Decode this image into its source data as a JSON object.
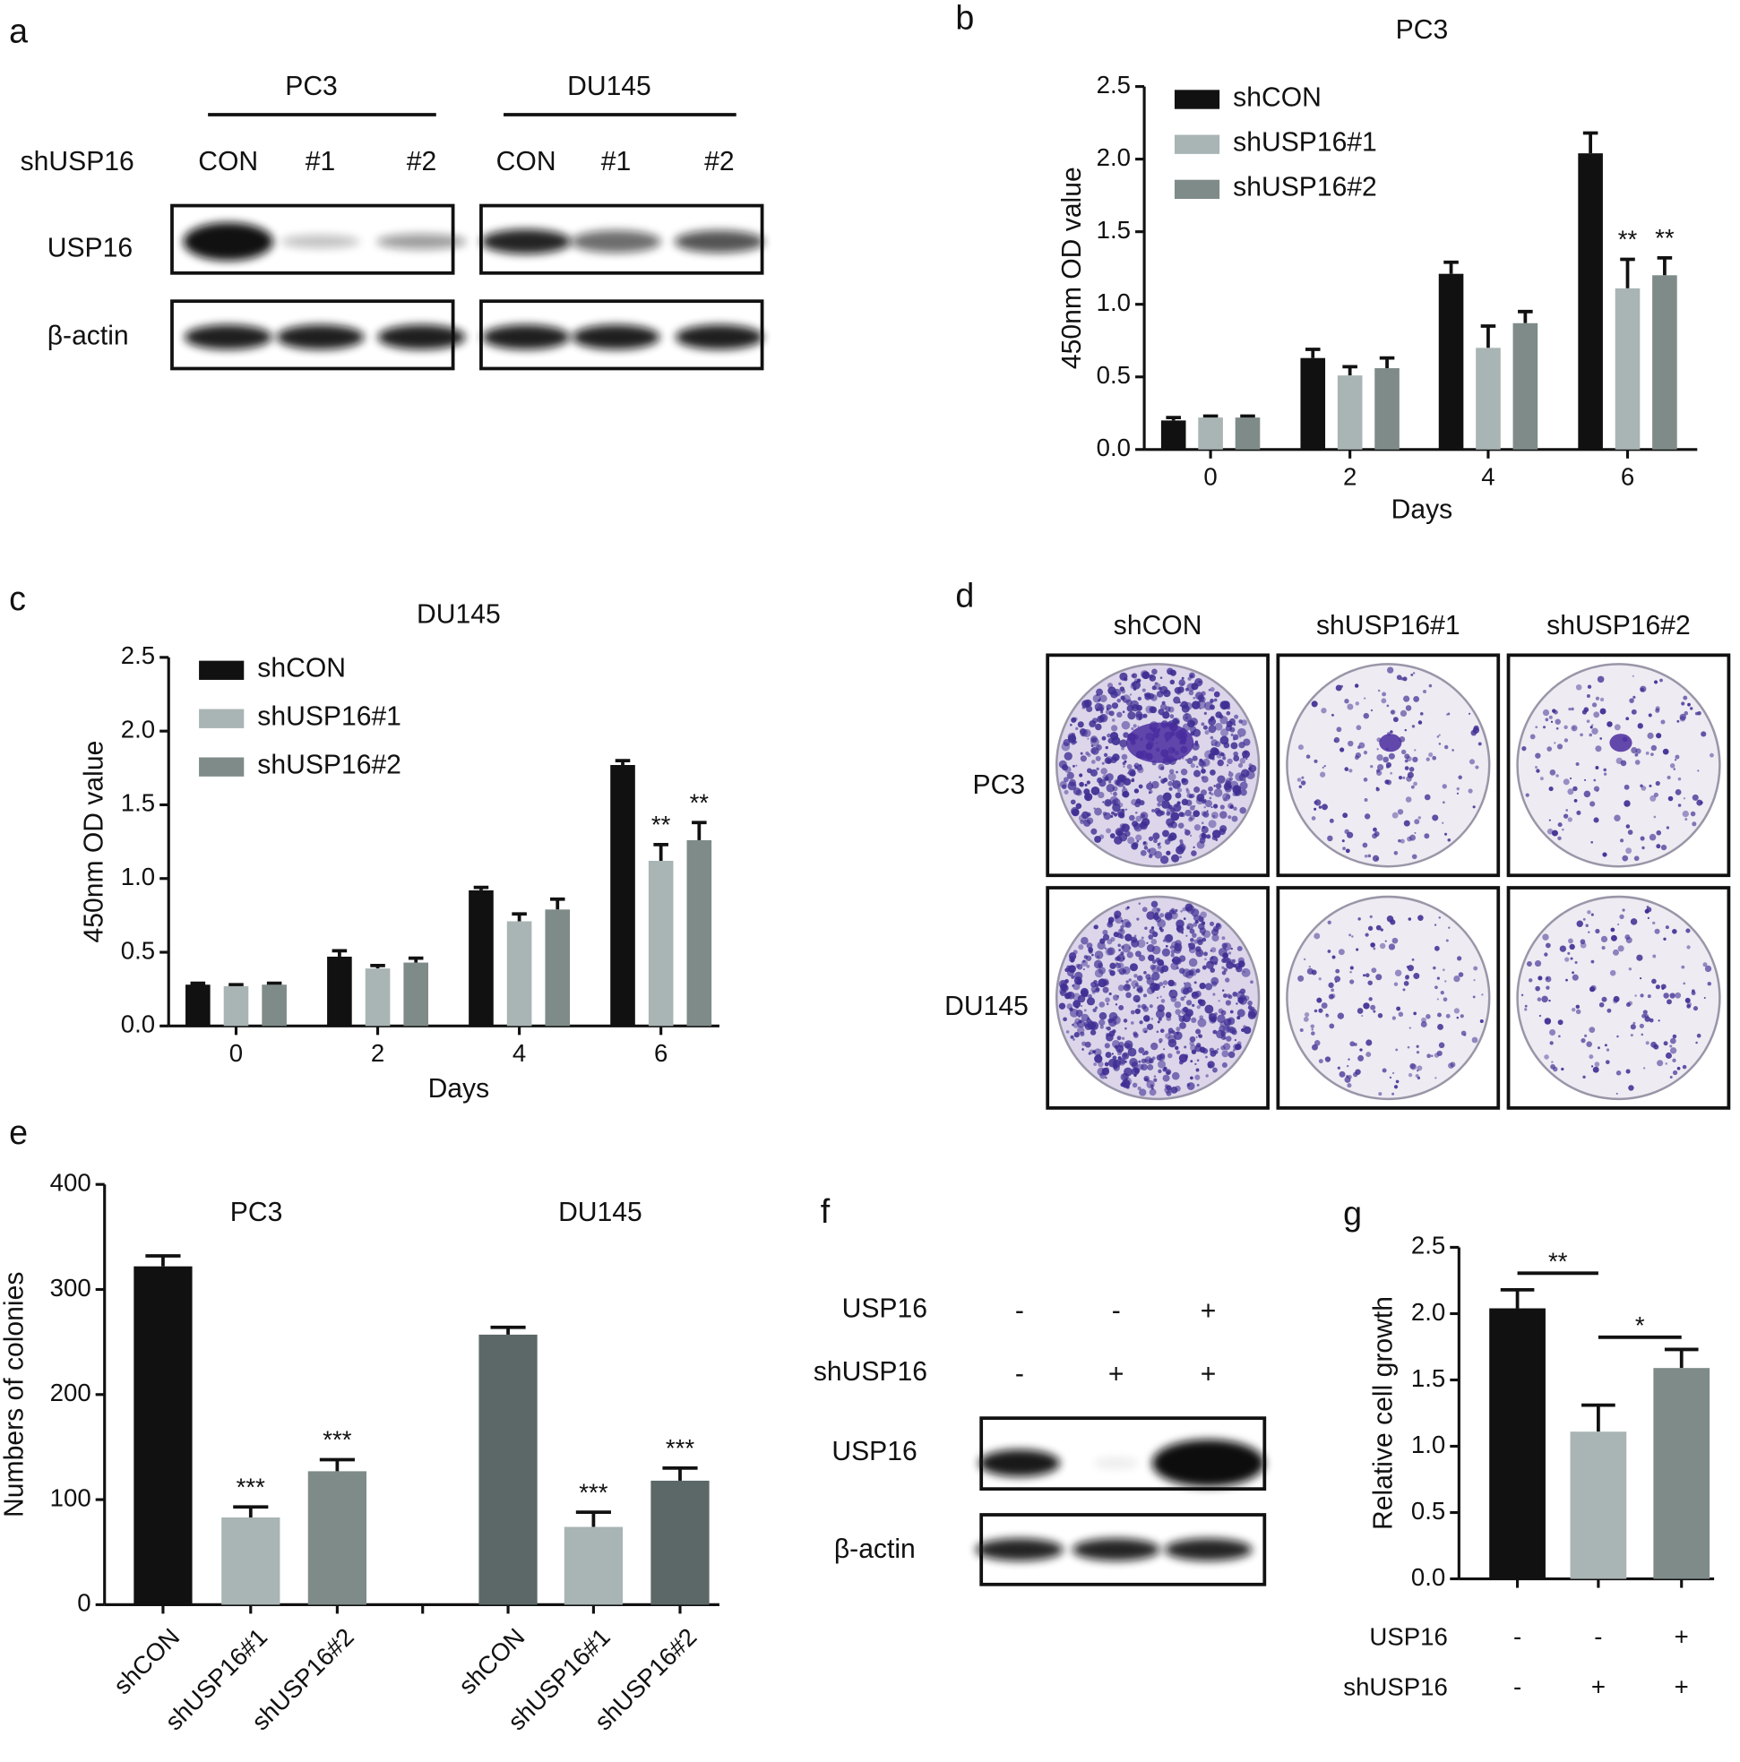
{
  "chart_data": [
    {
      "type": "bar",
      "panel": "b",
      "title": "PC3",
      "x_label": "Days",
      "y_label": "450nm OD value",
      "categories": [
        "0",
        "2",
        "4",
        "6"
      ],
      "series": [
        {
          "name": "shCON",
          "color": "#111111",
          "values": [
            0.2,
            0.63,
            1.21,
            2.04
          ],
          "errors": [
            0.02,
            0.06,
            0.08,
            0.14
          ],
          "sig": [
            null,
            null,
            null,
            null
          ]
        },
        {
          "name": "shUSP16#1",
          "color": "#a9b4b4",
          "values": [
            0.22,
            0.51,
            0.7,
            1.11
          ],
          "errors": [
            0.01,
            0.06,
            0.15,
            0.2
          ],
          "sig": [
            null,
            null,
            null,
            "**"
          ]
        },
        {
          "name": "shUSP16#2",
          "color": "#7e8b89",
          "values": [
            0.22,
            0.56,
            0.87,
            1.2
          ],
          "errors": [
            0.01,
            0.07,
            0.08,
            0.12
          ],
          "sig": [
            null,
            null,
            null,
            "**"
          ]
        }
      ],
      "ylim": [
        0,
        2.5
      ],
      "yticks": [
        {
          "value": 0,
          "label": "0.0"
        },
        0.5,
        {
          "value": 1,
          "label": "1.0"
        },
        1.5,
        {
          "value": 2,
          "label": "2.0"
        },
        2.5
      ],
      "legend": "top-left"
    },
    {
      "type": "bar",
      "panel": "c",
      "title": "DU145",
      "x_label": "Days",
      "y_label": "450nm OD value",
      "categories": [
        "0",
        "2",
        "4",
        "6"
      ],
      "series": [
        {
          "name": "shCON",
          "color": "#111111",
          "values": [
            0.28,
            0.47,
            0.92,
            1.77
          ],
          "errors": [
            0.01,
            0.04,
            0.02,
            0.03
          ],
          "sig": [
            null,
            null,
            null,
            null
          ]
        },
        {
          "name": "shUSP16#1",
          "color": "#a9b4b4",
          "values": [
            0.27,
            0.39,
            0.71,
            1.12
          ],
          "errors": [
            0.01,
            0.02,
            0.05,
            0.11
          ],
          "sig": [
            null,
            null,
            null,
            "**"
          ]
        },
        {
          "name": "shUSP16#2",
          "color": "#7e8b89",
          "values": [
            0.28,
            0.43,
            0.79,
            1.26
          ],
          "errors": [
            0.01,
            0.03,
            0.07,
            0.12
          ],
          "sig": [
            null,
            null,
            null,
            "**"
          ]
        }
      ],
      "ylim": [
        0,
        2.5
      ],
      "yticks": [
        {
          "value": 0,
          "label": "0.0"
        },
        0.5,
        {
          "value": 1,
          "label": "1.0"
        },
        1.5,
        {
          "value": 2,
          "label": "2.0"
        },
        2.5
      ],
      "legend": "top-left"
    },
    {
      "type": "bar",
      "panel": "e",
      "y_label": "Numbers of colonies",
      "groups": [
        {
          "name": "PC3",
          "categories": [
            "shCON",
            "shUSP16#1",
            "shUSP16#2"
          ],
          "values": [
            322,
            83,
            127
          ],
          "errors": [
            10,
            10,
            11
          ],
          "colors": [
            "#111111",
            "#a9b4b4",
            "#7e8b89"
          ],
          "sig": [
            null,
            "***",
            "***"
          ]
        },
        {
          "name": "DU145",
          "categories": [
            "shCON",
            "shUSP16#1",
            "shUSP16#2"
          ],
          "values": [
            257,
            74,
            118
          ],
          "errors": [
            7,
            14,
            12
          ],
          "colors": [
            "#5b6867",
            "#a9b4b4",
            "#5b6867"
          ],
          "sig": [
            null,
            "***",
            "***"
          ]
        }
      ],
      "ylim": [
        0,
        400
      ],
      "yticks": [
        0,
        100,
        200,
        300,
        400
      ]
    },
    {
      "type": "bar",
      "panel": "g",
      "y_label": "Relative cell growth",
      "values": [
        2.04,
        1.11,
        1.59
      ],
      "errors": [
        0.14,
        0.2,
        0.14
      ],
      "colors": [
        "#111111",
        "#a9b4b4",
        "#7e8b89"
      ],
      "brackets": [
        {
          "label": "**"
        },
        {
          "label": "*"
        }
      ],
      "conditions": [
        {
          "name": "USP16",
          "values": [
            "-",
            "-",
            "+"
          ]
        },
        {
          "name": "shUSP16",
          "values": [
            "-",
            "+",
            "+"
          ]
        }
      ],
      "ylim": [
        0,
        2.5
      ],
      "yticks": [
        {
          "value": 0,
          "label": "0.0"
        },
        0.5,
        {
          "value": 1,
          "label": "1.0"
        },
        1.5,
        {
          "value": 2,
          "label": "2.0"
        },
        2.5
      ]
    }
  ],
  "western_blots": [
    {
      "panel": "a",
      "cell_lines": [
        "PC3",
        "DU145"
      ],
      "row_header": "shUSP16",
      "lanes": [
        "CON",
        "#1",
        "#2",
        "CON",
        "#1",
        "#2"
      ],
      "bands": [
        "USP16",
        "β-actin"
      ]
    },
    {
      "panel": "f",
      "conditions": [
        {
          "name": "USP16",
          "values": [
            "-",
            "-",
            "+"
          ]
        },
        {
          "name": "shUSP16",
          "values": [
            "-",
            "+",
            "+"
          ]
        }
      ],
      "bands": [
        "USP16",
        "β-actin"
      ]
    }
  ],
  "colony_assay": {
    "panel": "d",
    "columns": [
      "shCON",
      "shUSP16#1",
      "shUSP16#2"
    ],
    "rows": [
      "PC3",
      "DU145"
    ]
  }
}
